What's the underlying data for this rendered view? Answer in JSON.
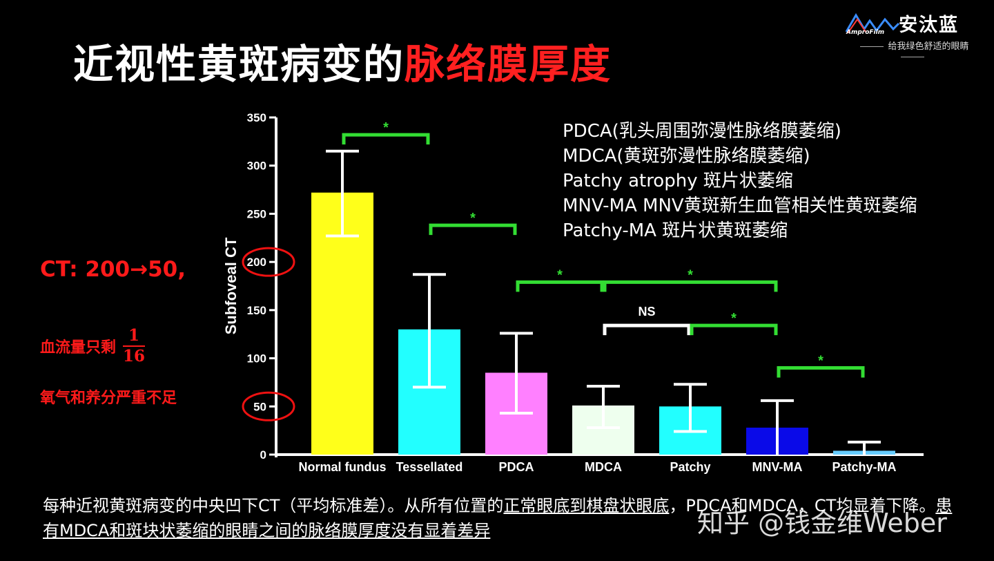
{
  "header": {
    "title_white": "近视性黄斑病变的",
    "title_red": "脉络膜厚度"
  },
  "logo": {
    "brand": "安汰蓝",
    "mini": "AmproFilm",
    "tagline": "给我绿色舒适的眼睛"
  },
  "side_notes": {
    "ct_change": "CT: 200→50,",
    "blood_flow": "血流量只剩",
    "frac_num": "1",
    "frac_den": "16",
    "oxygen": "氧气和养分严重不足"
  },
  "legend_notes": [
    "PDCA(乳头周围弥漫性脉络膜萎缩)",
    "MDCA(黄斑弥漫性脉络膜萎缩)",
    "Patchy atrophy 斑片状萎缩",
    "MNV-MA MNV黄斑新生血管相关性黄斑萎缩",
    "Patchy-MA 斑片状黄斑萎缩"
  ],
  "caption": {
    "part1": "每种近视黄斑病变的中央凹下CT（平均标准差）。从所有位置的",
    "part2": "正常眼底到棋盘状眼底",
    "part3": "，PDCA和MDCA，CT均显着下降。",
    "part4": "患有MDCA和斑块状萎缩的眼睛之间的脉络膜厚度没有显着差异"
  },
  "watermark": "知乎 @钱金维Weber",
  "colors": {
    "accent_red": "#ff1a1a",
    "sig_green": "#33dd33",
    "ns_white": "#ffffff"
  },
  "chart_data": {
    "type": "bar",
    "ylabel": "Subfoveal CT",
    "ylim": [
      0,
      350
    ],
    "yticks": [
      0,
      50,
      100,
      150,
      200,
      250,
      300,
      350
    ],
    "categories": [
      "Normal fundus",
      "Tessellated",
      "PDCA",
      "MDCA",
      "Patchy",
      "MNV-MA",
      "Patchy-MA"
    ],
    "values": [
      272,
      130,
      85,
      51,
      50,
      28,
      4
    ],
    "error_upper": [
      315,
      187,
      126,
      71,
      73,
      56,
      13
    ],
    "error_lower": [
      227,
      70,
      43,
      28,
      24,
      0,
      0
    ],
    "bar_colors": [
      "#ffff1a",
      "#22ffff",
      "#ff80ff",
      "#eeffee",
      "#22ffff",
      "#0a0ae8",
      "#66ccff"
    ],
    "circled_ticks": [
      200,
      50
    ],
    "comparisons": [
      {
        "from": 0,
        "to": 1,
        "label": "*",
        "y": 332,
        "color": "#33dd33"
      },
      {
        "from": 1,
        "to": 2,
        "label": "*",
        "y": 238,
        "color": "#33dd33"
      },
      {
        "from": 2,
        "to": 3,
        "label": "*",
        "y": 179,
        "color": "#33dd33"
      },
      {
        "from": 3,
        "to": 5,
        "label": "*",
        "y": 179,
        "color": "#33dd33"
      },
      {
        "from": 3,
        "to": 4,
        "label": "NS",
        "y": 134,
        "color": "#ffffff"
      },
      {
        "from": 4,
        "to": 5,
        "label": "*",
        "y": 134,
        "color": "#33dd33"
      },
      {
        "from": 5,
        "to": 6,
        "label": "*",
        "y": 90,
        "color": "#33dd33"
      }
    ]
  }
}
